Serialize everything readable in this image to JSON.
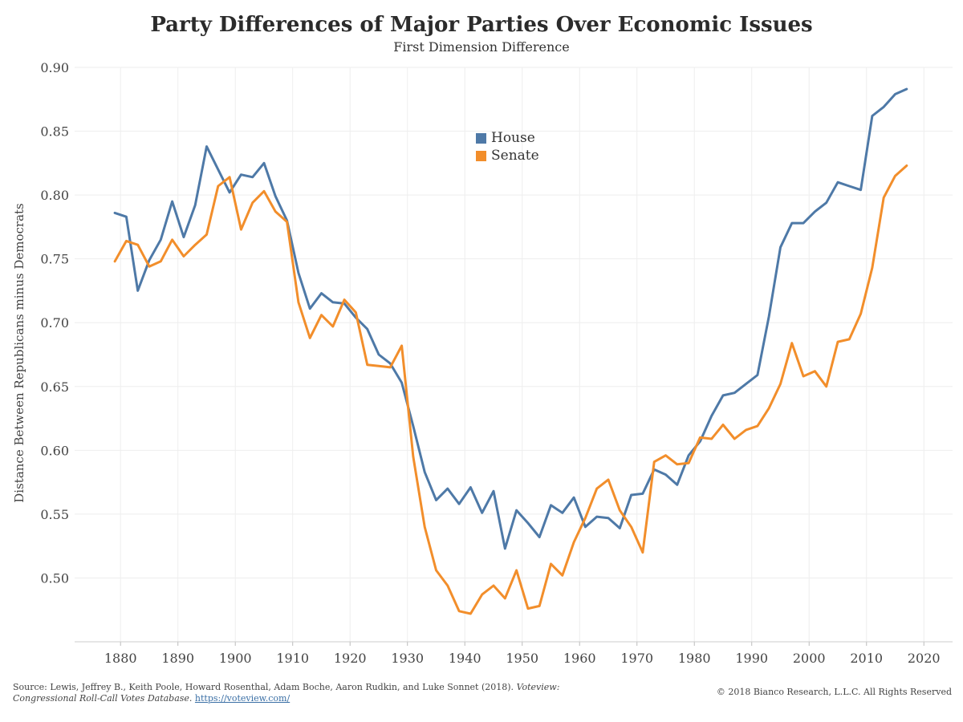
{
  "chart_data": {
    "type": "line",
    "title": "Party Differences of Major Parties Over Economic Issues",
    "subtitle": "First Dimension Difference",
    "ylabel": "Distance Between Republicans minus Democrats",
    "xlabel": "",
    "xlim": [
      1872,
      2025
    ],
    "ylim": [
      0.45,
      0.9
    ],
    "xticks": [
      1880,
      1890,
      1900,
      1910,
      1920,
      1930,
      1940,
      1950,
      1960,
      1970,
      1980,
      1990,
      2000,
      2010,
      2020
    ],
    "yticks": [
      0.5,
      0.55,
      0.6,
      0.65,
      0.7,
      0.75,
      0.8,
      0.85,
      0.9
    ],
    "ytick_labels": [
      "0.50",
      "0.55",
      "0.60",
      "0.65",
      "0.70",
      "0.75",
      "0.80",
      "0.85",
      "0.90"
    ],
    "grid": true,
    "legend_position": "top-center",
    "x": [
      1879,
      1881,
      1883,
      1885,
      1887,
      1889,
      1891,
      1893,
      1895,
      1897,
      1899,
      1901,
      1903,
      1905,
      1907,
      1909,
      1911,
      1913,
      1915,
      1917,
      1919,
      1921,
      1923,
      1925,
      1927,
      1929,
      1931,
      1933,
      1935,
      1937,
      1939,
      1941,
      1943,
      1945,
      1947,
      1949,
      1951,
      1953,
      1955,
      1957,
      1959,
      1961,
      1963,
      1965,
      1967,
      1969,
      1971,
      1973,
      1975,
      1977,
      1979,
      1981,
      1983,
      1985,
      1987,
      1989,
      1991,
      1993,
      1995,
      1997,
      1999,
      2001,
      2003,
      2005,
      2007,
      2009,
      2011,
      2013,
      2015,
      2017
    ],
    "series": [
      {
        "name": "House",
        "color": "#4e79a7",
        "values": [
          0.786,
          0.783,
          0.725,
          0.749,
          0.765,
          0.795,
          0.767,
          0.792,
          0.838,
          0.82,
          0.802,
          0.816,
          0.814,
          0.825,
          0.799,
          0.78,
          0.739,
          0.711,
          0.723,
          0.716,
          0.715,
          0.704,
          0.695,
          0.675,
          0.668,
          0.653,
          0.619,
          0.583,
          0.561,
          0.57,
          0.558,
          0.571,
          0.551,
          0.568,
          0.523,
          0.553,
          0.543,
          0.532,
          0.557,
          0.551,
          0.563,
          0.54,
          0.548,
          0.547,
          0.539,
          0.565,
          0.566,
          0.585,
          0.581,
          0.573,
          0.596,
          0.607,
          0.627,
          0.643,
          0.645,
          0.652,
          0.659,
          0.705,
          0.759,
          0.778,
          0.778,
          0.787,
          0.794,
          0.81,
          0.807,
          0.804,
          0.862,
          0.869,
          0.879,
          0.883
        ]
      },
      {
        "name": "Senate",
        "color": "#f28e2b",
        "values": [
          0.748,
          0.764,
          0.761,
          0.744,
          0.748,
          0.765,
          0.752,
          0.761,
          0.769,
          0.807,
          0.814,
          0.773,
          0.794,
          0.803,
          0.787,
          0.779,
          0.716,
          0.688,
          0.706,
          0.697,
          0.718,
          0.708,
          0.667,
          0.666,
          0.665,
          0.682,
          0.595,
          0.54,
          0.506,
          0.494,
          0.474,
          0.472,
          0.487,
          0.494,
          0.484,
          0.506,
          0.476,
          0.478,
          0.511,
          0.502,
          0.528,
          0.547,
          0.57,
          0.577,
          0.553,
          0.54,
          0.52,
          0.591,
          0.596,
          0.589,
          0.59,
          0.61,
          0.609,
          0.62,
          0.609,
          0.616,
          0.619,
          0.633,
          0.652,
          0.684,
          0.658,
          0.662,
          0.65,
          0.685,
          0.687,
          0.707,
          0.743,
          0.798,
          0.815,
          0.823
        ]
      }
    ]
  },
  "footer": {
    "source_prefix": "Source: Lewis, Jeffrey B., Keith Poole, Howard Rosenthal, Adam Boche, Aaron Rudkin, and Luke Sonnet (2018). ",
    "source_italic": "Voteview: Congressional Roll-Call Votes Database.",
    "source_link": "https://voteview.com/",
    "copyright": "© 2018 Bianco Research, L.L.C. All Rights Reserved"
  }
}
